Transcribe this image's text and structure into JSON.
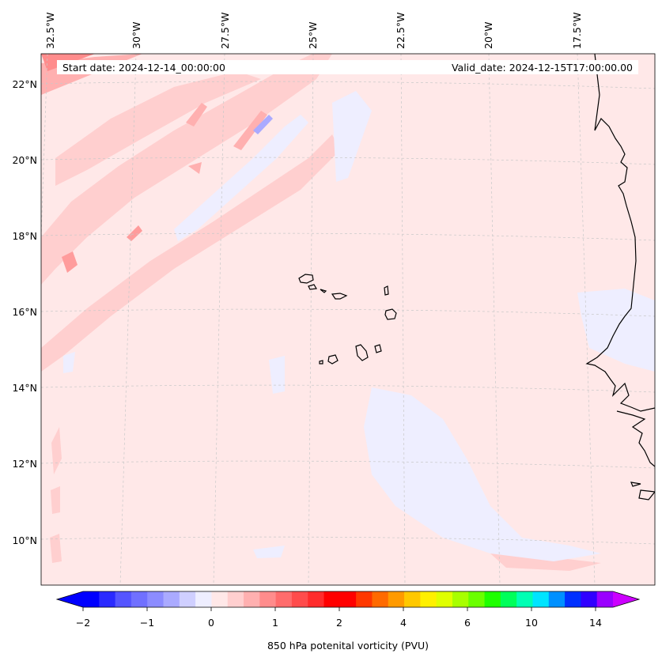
{
  "header": {
    "start_date": "Start date: 2024-12-14_00:00:00",
    "valid_date": "Valid_date: 2024-12-15T17:00:00.00"
  },
  "map": {
    "lon_labels": [
      "32.5°W",
      "30°W",
      "27.5°W",
      "25°W",
      "22.5°W",
      "20°W",
      "17.5°W"
    ],
    "lat_labels": [
      "22°N",
      "20°N",
      "18°N",
      "16°N",
      "14°N",
      "12°N",
      "10°N"
    ],
    "background_color": "#ffe8e8"
  },
  "colorbar": {
    "label": "850 hPa potenital vorticity (PVU)",
    "ticks": [
      "−2",
      "−1",
      "0",
      "1",
      "2",
      "4",
      "6",
      "10",
      "14"
    ],
    "colors": [
      "#0000ff",
      "#2a2aff",
      "#5555ff",
      "#7070ff",
      "#8c8cff",
      "#aaaaff",
      "#cfcfff",
      "#eeeeff",
      "#ffe8e8",
      "#ffcfcf",
      "#ffb0b0",
      "#ff8c8c",
      "#ff6c6c",
      "#ff4c4c",
      "#ff2c2c",
      "#ff0000",
      "#ff0000",
      "#ff3800",
      "#ff6a00",
      "#ff9a00",
      "#ffc800",
      "#fff000",
      "#e0ff00",
      "#a8ff00",
      "#6aff00",
      "#1eff00",
      "#00ff5a",
      "#00ffb4",
      "#00e4ff",
      "#0090ff",
      "#0030ff",
      "#3000ff",
      "#9a00ff"
    ],
    "over_color": "#cc00ff",
    "under_color": "#0000ff"
  }
}
